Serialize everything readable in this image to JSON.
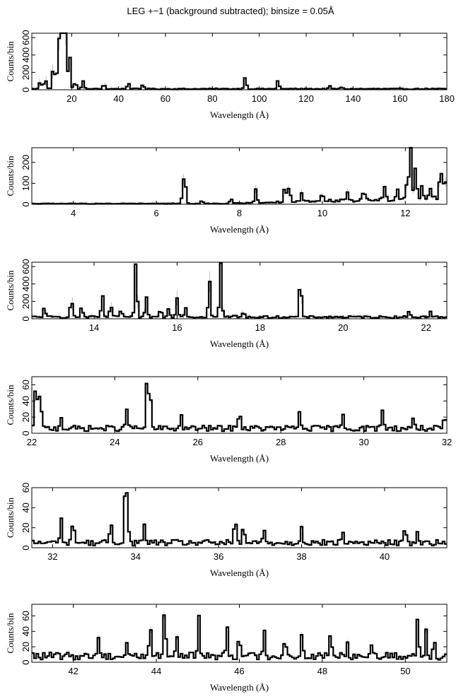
{
  "title": "LEG +−1 (background subtracted); binsize = 0.05Å",
  "chart_data": [
    {
      "type": "line",
      "xlabel": "Wavelength (Å)",
      "ylabel": "Counts/bin",
      "xlim": [
        3,
        180
      ],
      "ylim": [
        0,
        650
      ],
      "xticks": [
        20,
        40,
        60,
        80,
        100,
        120,
        140,
        160,
        180
      ],
      "yticks": [
        0,
        200,
        400,
        600
      ],
      "peaks": [
        [
          6.6,
          90
        ],
        [
          8.4,
          60
        ],
        [
          9.1,
          70
        ],
        [
          12.1,
          230
        ],
        [
          13.4,
          200
        ],
        [
          15.0,
          640
        ],
        [
          15.3,
          250
        ],
        [
          16.0,
          300
        ],
        [
          16.8,
          420
        ],
        [
          17.1,
          620
        ],
        [
          19.0,
          450
        ],
        [
          21.6,
          80
        ],
        [
          24.8,
          90
        ],
        [
          33.7,
          60
        ],
        [
          44.2,
          70
        ],
        [
          50.4,
          55
        ],
        [
          94.0,
          140
        ],
        [
          108.0,
          100
        ],
        [
          130.0,
          30
        ],
        [
          135.0,
          20
        ]
      ],
      "baseline": 10
    },
    {
      "type": "line",
      "xlabel": "Wavelength (Å)",
      "ylabel": "Counts/bin",
      "xlim": [
        3,
        13
      ],
      "ylim": [
        0,
        270
      ],
      "xticks": [
        4,
        6,
        8,
        10,
        12
      ],
      "yticks": [
        0,
        100,
        200
      ],
      "peaks": [
        [
          6.65,
          100
        ],
        [
          6.7,
          80
        ],
        [
          7.1,
          15
        ],
        [
          7.8,
          20
        ],
        [
          8.4,
          65
        ],
        [
          9.1,
          80
        ],
        [
          9.2,
          70
        ],
        [
          9.5,
          40
        ],
        [
          10.0,
          35
        ],
        [
          10.6,
          45
        ],
        [
          11.0,
          45
        ],
        [
          11.5,
          55
        ],
        [
          11.8,
          50
        ],
        [
          12.05,
          110
        ],
        [
          12.13,
          250
        ],
        [
          12.25,
          170
        ],
        [
          12.4,
          70
        ],
        [
          12.6,
          55
        ],
        [
          12.85,
          150
        ],
        [
          12.95,
          100
        ]
      ],
      "baseline": 3
    },
    {
      "type": "line",
      "xlabel": "Wavelength (Å)",
      "ylabel": "Counts/bin",
      "xlim": [
        12.5,
        22.5
      ],
      "ylim": [
        0,
        650
      ],
      "xticks": [
        14,
        16,
        18,
        20,
        22
      ],
      "yticks": [
        0,
        200,
        400,
        600
      ],
      "peaks": [
        [
          12.8,
          110
        ],
        [
          13.45,
          220
        ],
        [
          13.7,
          120
        ],
        [
          14.2,
          250
        ],
        [
          14.4,
          140
        ],
        [
          14.65,
          90
        ],
        [
          15.01,
          640
        ],
        [
          15.26,
          220
        ],
        [
          15.6,
          90
        ],
        [
          15.8,
          100
        ],
        [
          16.0,
          230
        ],
        [
          16.2,
          120
        ],
        [
          16.78,
          440
        ],
        [
          17.05,
          630
        ],
        [
          17.4,
          20
        ],
        [
          17.6,
          50
        ],
        [
          18.97,
          440
        ],
        [
          21.6,
          70
        ],
        [
          22.1,
          60
        ]
      ],
      "baseline": 20
    },
    {
      "type": "line",
      "xlabel": "Wavelength (Å)",
      "ylabel": "Counts/bin",
      "xlim": [
        22,
        32
      ],
      "ylim": [
        0,
        70
      ],
      "xticks": [
        22,
        24,
        26,
        28,
        30,
        32
      ],
      "yticks": [
        0,
        20,
        40,
        60
      ],
      "peaks": [
        [
          22.1,
          62
        ],
        [
          22.2,
          50
        ],
        [
          22.7,
          15
        ],
        [
          24.3,
          25
        ],
        [
          24.78,
          65
        ],
        [
          24.85,
          40
        ],
        [
          25.6,
          15
        ],
        [
          27.0,
          25
        ],
        [
          28.45,
          20
        ],
        [
          29.5,
          18
        ],
        [
          30.45,
          25
        ],
        [
          31.2,
          15
        ],
        [
          31.95,
          12
        ]
      ],
      "baseline": 6
    },
    {
      "type": "line",
      "xlabel": "Wavelength (Å)",
      "ylabel": "Counts/bin",
      "xlim": [
        31.5,
        41.5
      ],
      "ylim": [
        0,
        60
      ],
      "xticks": [
        32,
        34,
        36,
        38,
        40
      ],
      "yticks": [
        0,
        20,
        40,
        60
      ],
      "peaks": [
        [
          32.2,
          25
        ],
        [
          32.5,
          25
        ],
        [
          33.4,
          20
        ],
        [
          33.75,
          52
        ],
        [
          33.8,
          35
        ],
        [
          34.2,
          18
        ],
        [
          36.4,
          22
        ],
        [
          36.6,
          15
        ],
        [
          37.1,
          12
        ],
        [
          38.0,
          18
        ],
        [
          39.0,
          10
        ],
        [
          40.5,
          15
        ],
        [
          40.8,
          12
        ]
      ],
      "baseline": 5
    },
    {
      "type": "line",
      "xlabel": "Wavelength (Å)",
      "ylabel": "Counts/bin",
      "xlim": [
        41,
        51
      ],
      "ylim": [
        0,
        75
      ],
      "xticks": [
        42,
        44,
        46,
        48,
        50
      ],
      "yticks": [
        0,
        20,
        40,
        60
      ],
      "peaks": [
        [
          42.6,
          25
        ],
        [
          43.3,
          18
        ],
        [
          43.85,
          40
        ],
        [
          44.2,
          65
        ],
        [
          44.5,
          25
        ],
        [
          45.02,
          52
        ],
        [
          45.7,
          40
        ],
        [
          46.0,
          30
        ],
        [
          46.6,
          30
        ],
        [
          47.1,
          25
        ],
        [
          47.5,
          25
        ],
        [
          48.2,
          30
        ],
        [
          48.6,
          20
        ],
        [
          49.2,
          20
        ],
        [
          50.3,
          50
        ],
        [
          50.5,
          35
        ],
        [
          50.7,
          20
        ]
      ],
      "baseline": 8
    }
  ]
}
